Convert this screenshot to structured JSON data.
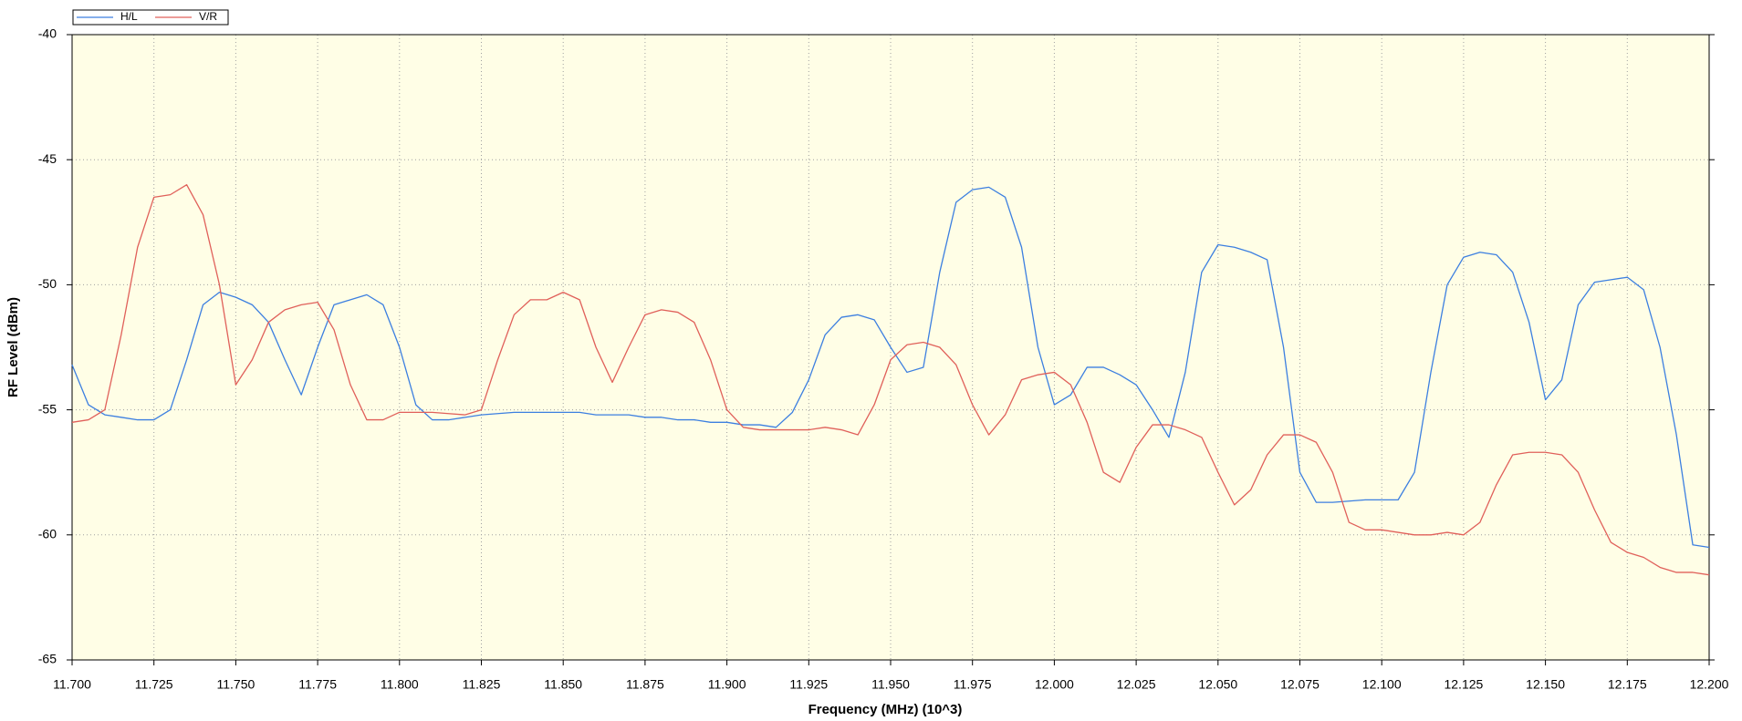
{
  "chart_data": {
    "type": "line",
    "x_label": "Frequency (MHz) (10^3)",
    "y_label": "RF Level (dBm)",
    "xlim": [
      11.7,
      12.2
    ],
    "ylim": [
      -65,
      -40
    ],
    "xticks": [
      {
        "value": 11.7,
        "label": "11.700"
      },
      {
        "value": 11.725,
        "label": "11.725"
      },
      {
        "value": 11.75,
        "label": "11.750"
      },
      {
        "value": 11.775,
        "label": "11.775"
      },
      {
        "value": 11.8,
        "label": "11.800"
      },
      {
        "value": 11.825,
        "label": "11.825"
      },
      {
        "value": 11.85,
        "label": "11.850"
      },
      {
        "value": 11.875,
        "label": "11.875"
      },
      {
        "value": 11.9,
        "label": "11.900"
      },
      {
        "value": 11.925,
        "label": "11.925"
      },
      {
        "value": 11.95,
        "label": "11.950"
      },
      {
        "value": 11.975,
        "label": "11.975"
      },
      {
        "value": 12,
        "label": "12.000"
      },
      {
        "value": 12.025,
        "label": "12.025"
      },
      {
        "value": 12.05,
        "label": "12.050"
      },
      {
        "value": 12.075,
        "label": "12.075"
      },
      {
        "value": 12.1,
        "label": "12.100"
      },
      {
        "value": 12.125,
        "label": "12.125"
      },
      {
        "value": 12.15,
        "label": "12.150"
      },
      {
        "value": 12.175,
        "label": "12.175"
      },
      {
        "value": 12.2,
        "label": "12.200"
      }
    ],
    "yticks": [
      -40,
      -45,
      -50,
      -55,
      -60,
      -65
    ],
    "grid": true,
    "legend": "top-left",
    "x": [
      11.7,
      11.705,
      11.71,
      11.715,
      11.72,
      11.725,
      11.73,
      11.735,
      11.74,
      11.745,
      11.75,
      11.755,
      11.76,
      11.765,
      11.77,
      11.775,
      11.78,
      11.785,
      11.79,
      11.795,
      11.8,
      11.805,
      11.81,
      11.815,
      11.82,
      11.825,
      11.83,
      11.835,
      11.84,
      11.845,
      11.85,
      11.855,
      11.86,
      11.865,
      11.87,
      11.875,
      11.88,
      11.885,
      11.89,
      11.895,
      11.9,
      11.905,
      11.91,
      11.915,
      11.92,
      11.925,
      11.93,
      11.935,
      11.94,
      11.945,
      11.95,
      11.955,
      11.96,
      11.965,
      11.97,
      11.975,
      11.98,
      11.985,
      11.99,
      11.995,
      12,
      12.005,
      12.01,
      12.015,
      12.02,
      12.025,
      12.03,
      12.035,
      12.04,
      12.045,
      12.05,
      12.055,
      12.06,
      12.065,
      12.07,
      12.075,
      12.08,
      12.085,
      12.09,
      12.095,
      12.1,
      12.105,
      12.11,
      12.115,
      12.12,
      12.125,
      12.13,
      12.135,
      12.14,
      12.145,
      12.15,
      12.155,
      12.16,
      12.165,
      12.17,
      12.175,
      12.18,
      12.185,
      12.19,
      12.195,
      12.2
    ],
    "series": [
      {
        "name": "H/L",
        "color": "#3c7fe0",
        "values": [
          -53.2,
          -54.8,
          -55.2,
          -55.3,
          -55.4,
          -55.4,
          -55.0,
          -53.0,
          -50.8,
          -50.3,
          -50.5,
          -50.8,
          -51.5,
          -53.0,
          -54.4,
          -52.5,
          -50.8,
          -50.6,
          -50.4,
          -50.8,
          -52.5,
          -54.8,
          -55.4,
          -55.4,
          -55.3,
          -55.2,
          -55.15,
          -55.1,
          -55.1,
          -55.1,
          -55.1,
          -55.1,
          -55.2,
          -55.2,
          -55.2,
          -55.3,
          -55.3,
          -55.4,
          -55.4,
          -55.5,
          -55.5,
          -55.6,
          -55.6,
          -55.7,
          -55.1,
          -53.8,
          -52.0,
          -51.3,
          -51.2,
          -51.4,
          -52.5,
          -53.5,
          -53.3,
          -49.5,
          -46.7,
          -46.2,
          -46.1,
          -46.5,
          -48.5,
          -52.5,
          -54.8,
          -54.4,
          -53.3,
          -53.3,
          -53.6,
          -54.0,
          -55.0,
          -56.1,
          -53.5,
          -49.5,
          -48.4,
          -48.5,
          -48.7,
          -49.0,
          -52.5,
          -57.5,
          -58.7,
          -58.7,
          -58.65,
          -58.6,
          -58.6,
          -58.6,
          -57.5,
          -53.5,
          -50.0,
          -48.9,
          -48.7,
          -48.8,
          -49.5,
          -51.5,
          -54.6,
          -53.8,
          -50.8,
          -49.9,
          -49.8,
          -49.7,
          -50.2,
          -52.5,
          -56.0,
          -60.4,
          -60.5
        ]
      },
      {
        "name": "V/R",
        "color": "#e0605a",
        "values": [
          -55.5,
          -55.4,
          -55.0,
          -52.0,
          -48.5,
          -46.5,
          -46.4,
          -46.0,
          -47.2,
          -50.0,
          -54.0,
          -53.0,
          -51.5,
          -51.0,
          -50.8,
          -50.7,
          -51.8,
          -54.0,
          -55.4,
          -55.4,
          -55.1,
          -55.1,
          -55.1,
          -55.15,
          -55.2,
          -55.0,
          -53.0,
          -51.2,
          -50.6,
          -50.6,
          -50.3,
          -50.6,
          -52.5,
          -53.9,
          -52.5,
          -51.2,
          -51.0,
          -51.1,
          -51.5,
          -53.0,
          -55.0,
          -55.7,
          -55.8,
          -55.8,
          -55.8,
          -55.8,
          -55.7,
          -55.8,
          -56.0,
          -54.8,
          -53.0,
          -52.4,
          -52.3,
          -52.5,
          -53.2,
          -54.8,
          -56.0,
          -55.2,
          -53.8,
          -53.6,
          -53.5,
          -54.0,
          -55.5,
          -57.5,
          -57.9,
          -56.5,
          -55.6,
          -55.6,
          -55.8,
          -56.1,
          -57.5,
          -58.8,
          -58.2,
          -56.8,
          -56.0,
          -56.0,
          -56.3,
          -57.5,
          -59.5,
          -59.8,
          -59.8,
          -59.9,
          -60.0,
          -60.0,
          -59.9,
          -60.0,
          -59.5,
          -58.0,
          -56.8,
          -56.7,
          -56.7,
          -56.8,
          -57.5,
          -59.0,
          -60.3,
          -60.7,
          -60.9,
          -61.3,
          -61.5,
          -61.5,
          -61.6
        ]
      }
    ]
  }
}
